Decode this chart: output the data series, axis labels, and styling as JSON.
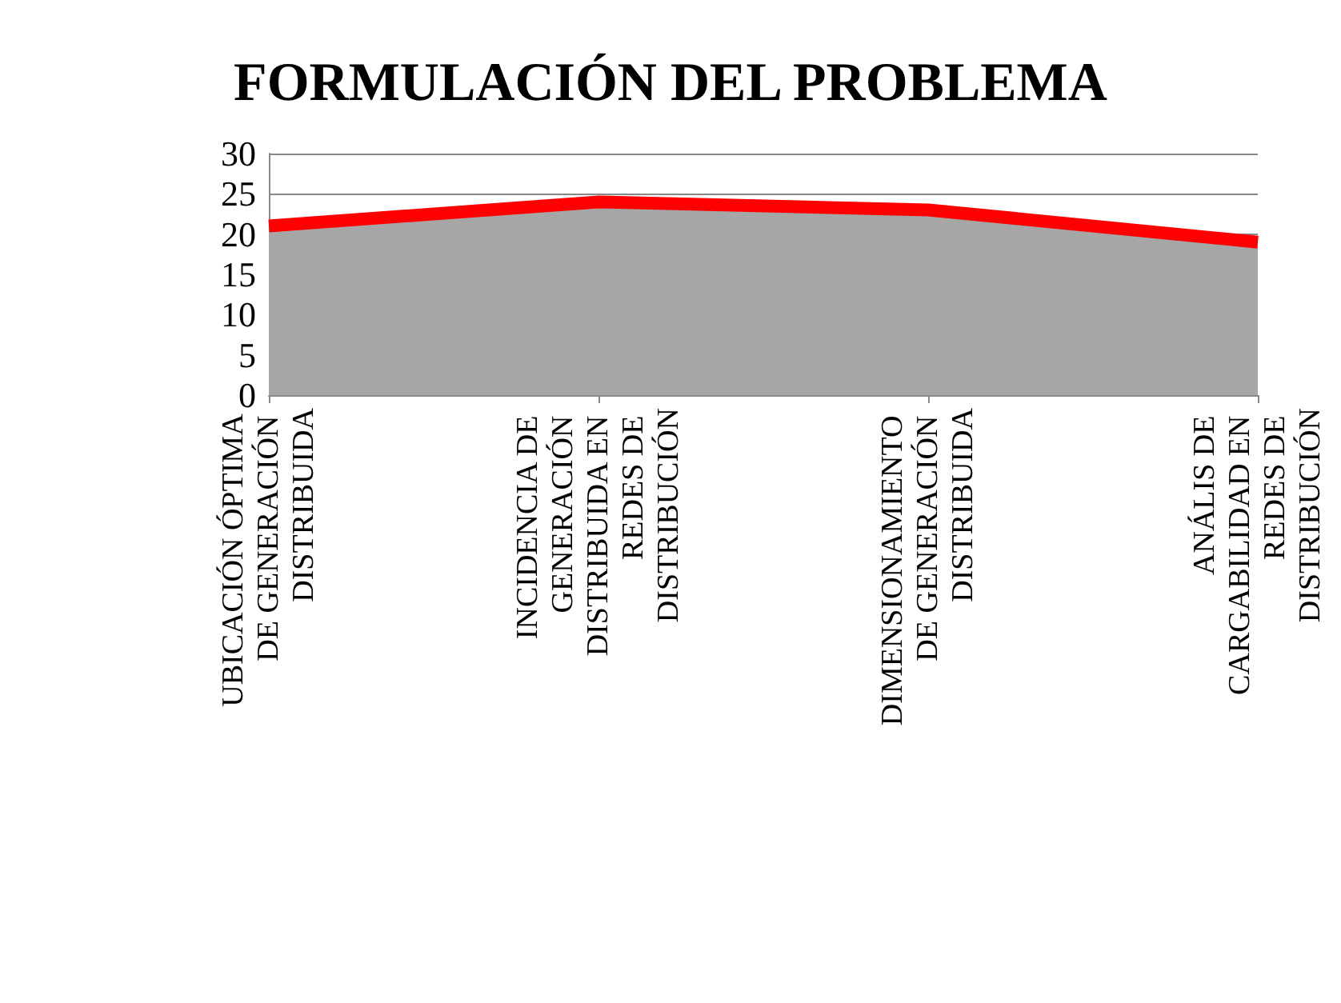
{
  "chart_data": {
    "type": "area",
    "title": "FORMULACIÓN DEL PROBLEMA",
    "categories": [
      "UBICACIÓN ÓPTIMA DE GENERACIÓN DISTRIBUIDA",
      "INCIDENCIA DE GENERACIÓN DISTRIBUIDA EN REDES DE DISTRIBUCIÓN",
      "DIMENSIONAMIENTO DE GENERACIÓN DISTRIBUIDA",
      "ANÁLIS DE CARGABILIDAD EN REDES DE DISTRIBUCIÓN"
    ],
    "series": [
      {
        "color": "#ff0000",
        "values": [
          21,
          24,
          23,
          19
        ]
      }
    ],
    "ylim": [
      0,
      30
    ],
    "yticks": [
      0,
      5,
      10,
      15,
      20,
      25,
      30
    ],
    "grid": "y"
  }
}
